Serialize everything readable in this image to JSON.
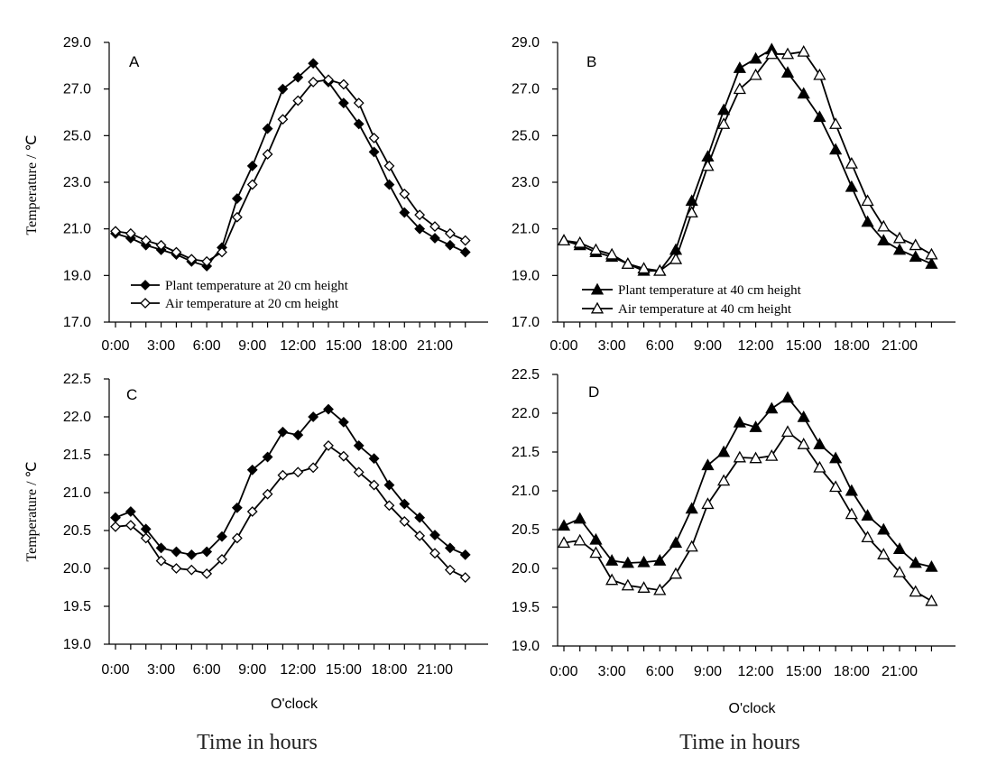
{
  "chart_data": [
    {
      "panel": "A",
      "type": "line",
      "ylabel": "Temperature / ℃",
      "xlabel": "",
      "ylim": [
        17.0,
        29.0
      ],
      "yticks": [
        "17.0",
        "19.0",
        "21.0",
        "23.0",
        "25.0",
        "27.0",
        "29.0"
      ],
      "xticks": [
        "0:00",
        "3:00",
        "6:00",
        "9:00",
        "12:00",
        "15:00",
        "18:00",
        "21:00"
      ],
      "legend_position": "bottom-left",
      "series": [
        {
          "name": "Plant temperature at 20 cm height",
          "marker": "diamond-filled",
          "values": [
            20.8,
            20.6,
            20.3,
            20.1,
            19.9,
            19.6,
            19.4,
            20.2,
            22.3,
            23.7,
            25.3,
            27.0,
            27.5,
            28.1,
            27.3,
            26.4,
            25.5,
            24.3,
            22.9,
            21.7,
            21.0,
            20.6,
            20.3,
            20.0
          ]
        },
        {
          "name": "Air temperature at 20 cm height",
          "marker": "diamond-open",
          "values": [
            20.9,
            20.8,
            20.5,
            20.3,
            20.0,
            19.7,
            19.6,
            20.0,
            21.5,
            22.9,
            24.2,
            25.7,
            26.5,
            27.3,
            27.4,
            27.2,
            26.4,
            24.9,
            23.7,
            22.5,
            21.6,
            21.1,
            20.8,
            20.5
          ]
        }
      ]
    },
    {
      "panel": "B",
      "type": "line",
      "ylabel": "",
      "xlabel": "",
      "ylim": [
        17.0,
        29.0
      ],
      "yticks": [
        "17.0",
        "19.0",
        "21.0",
        "23.0",
        "25.0",
        "27.0",
        "29.0"
      ],
      "xticks": [
        "0:00",
        "3:00",
        "6:00",
        "9:00",
        "12:00",
        "15:00",
        "18:00",
        "21:00"
      ],
      "legend_position": "bottom-left",
      "series": [
        {
          "name": "Plant temperature at 40 cm height",
          "marker": "triangle-filled",
          "values": [
            20.5,
            20.3,
            20.0,
            19.8,
            19.5,
            19.2,
            19.2,
            20.1,
            22.2,
            24.1,
            26.1,
            27.9,
            28.3,
            28.7,
            27.7,
            26.8,
            25.8,
            24.4,
            22.8,
            21.3,
            20.5,
            20.1,
            19.8,
            19.5
          ]
        },
        {
          "name": "Air temperature at 40 cm height",
          "marker": "triangle-open",
          "values": [
            20.5,
            20.4,
            20.1,
            19.9,
            19.5,
            19.3,
            19.2,
            19.7,
            21.7,
            23.7,
            25.5,
            27.0,
            27.6,
            28.5,
            28.5,
            28.6,
            27.6,
            25.5,
            23.8,
            22.2,
            21.1,
            20.6,
            20.3,
            19.9
          ]
        }
      ]
    },
    {
      "panel": "C",
      "type": "line",
      "ylabel": "Temperature / ℃",
      "xlabel": "O'clock",
      "ylim": [
        19.0,
        22.5
      ],
      "yticks": [
        "19.0",
        "19.5",
        "20.0",
        "20.5",
        "21.0",
        "21.5",
        "22.0",
        "22.5"
      ],
      "xticks": [
        "0:00",
        "3:00",
        "6:00",
        "9:00",
        "12:00",
        "15:00",
        "18:00",
        "21:00"
      ],
      "legend_position": "none",
      "series": [
        {
          "name": "Plant temperature at 20 cm height",
          "marker": "diamond-filled",
          "values": [
            20.67,
            20.75,
            20.52,
            20.27,
            20.22,
            20.18,
            20.22,
            20.42,
            20.8,
            21.3,
            21.47,
            21.8,
            21.76,
            22.0,
            22.1,
            21.93,
            21.62,
            21.45,
            21.1,
            20.85,
            20.67,
            20.44,
            20.27,
            20.18
          ]
        },
        {
          "name": "Air temperature at 20 cm height",
          "marker": "diamond-open",
          "values": [
            20.55,
            20.57,
            20.4,
            20.1,
            20.0,
            19.98,
            19.93,
            20.12,
            20.4,
            20.75,
            20.98,
            21.23,
            21.27,
            21.33,
            21.62,
            21.48,
            21.27,
            21.1,
            20.83,
            20.62,
            20.43,
            20.2,
            19.98,
            19.88
          ]
        }
      ]
    },
    {
      "panel": "D",
      "type": "line",
      "ylabel": "",
      "xlabel": "O'clock",
      "ylim": [
        19.0,
        22.5
      ],
      "yticks": [
        "19.0",
        "19.5",
        "20.0",
        "20.5",
        "21.0",
        "21.5",
        "22.0",
        "22.5"
      ],
      "xticks": [
        "0:00",
        "3:00",
        "6:00",
        "9:00",
        "12:00",
        "15:00",
        "18:00",
        "21:00"
      ],
      "legend_position": "none",
      "series": [
        {
          "name": "Plant temperature at 40 cm height",
          "marker": "triangle-filled",
          "values": [
            20.55,
            20.64,
            20.37,
            20.1,
            20.07,
            20.08,
            20.1,
            20.33,
            20.77,
            21.33,
            21.5,
            21.88,
            21.82,
            22.06,
            22.2,
            21.95,
            21.6,
            21.42,
            21.0,
            20.68,
            20.5,
            20.25,
            20.07,
            20.02
          ]
        },
        {
          "name": "Air temperature at 40 cm height",
          "marker": "triangle-open",
          "values": [
            20.33,
            20.36,
            20.2,
            19.85,
            19.78,
            19.75,
            19.72,
            19.93,
            20.28,
            20.83,
            21.13,
            21.43,
            21.42,
            21.45,
            21.76,
            21.6,
            21.3,
            21.05,
            20.7,
            20.4,
            20.18,
            19.95,
            19.7,
            19.58
          ]
        }
      ]
    }
  ],
  "captions": [
    "Time in hours",
    "Time in hours"
  ]
}
